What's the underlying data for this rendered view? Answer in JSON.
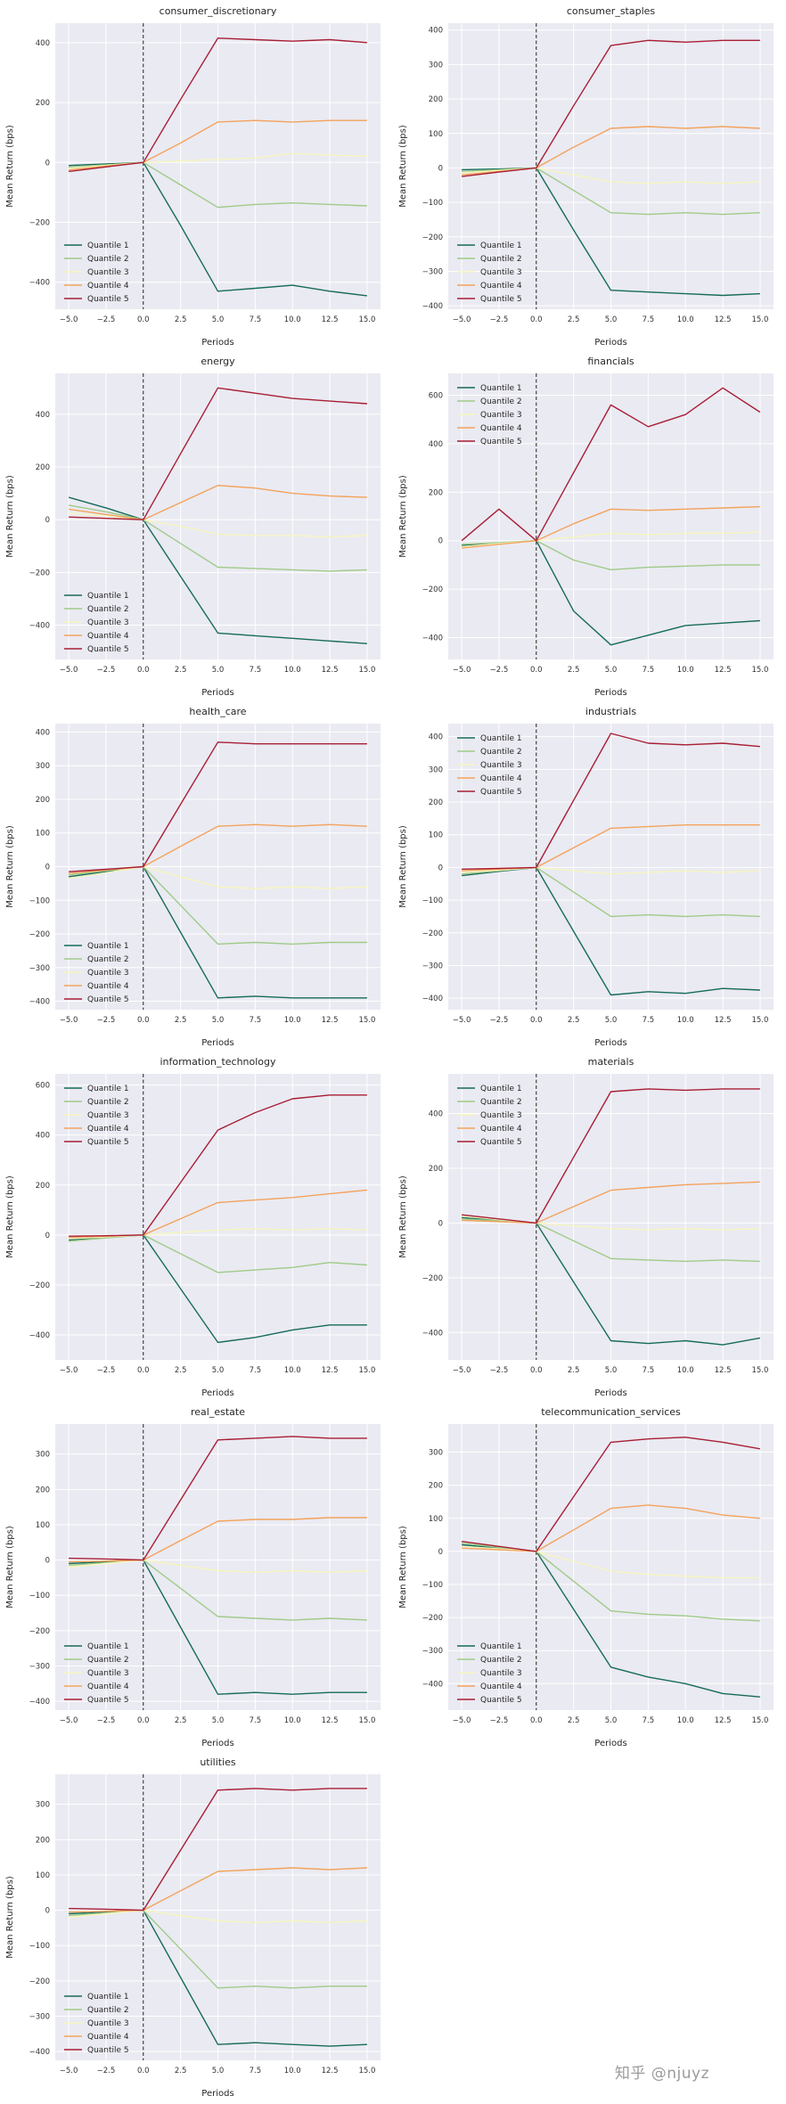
{
  "watermark": {
    "text": "知乎 @njuyz",
    "color": "#9b9b9b"
  },
  "figure": {
    "background": "#ffffff",
    "plot_bg": "#eaeaf2",
    "grid_color": "#ffffff",
    "vline_color": "#1c1c1c",
    "text_color": "#262626",
    "quantile_colors": [
      "#166b5a",
      "#9fcb88",
      "#f7f5be",
      "#f3a35c",
      "#a81e35"
    ]
  },
  "x_label": "Periods",
  "y_label": "Mean Return (bps)",
  "x": [
    -5,
    -2.5,
    0,
    2.5,
    5,
    7.5,
    10,
    12.5,
    15
  ],
  "x_tick_labels": [
    "−5.0",
    "−2.5",
    "0.0",
    "2.5",
    "5.0",
    "7.5",
    "10.0",
    "12.5",
    "15.0"
  ],
  "chart_data": [
    {
      "type": "line",
      "title": "consumer_discretionary",
      "ylim": [
        -490,
        465
      ],
      "yticks": [
        -400,
        -200,
        0,
        200,
        400
      ],
      "legend_loc": "lower-left",
      "series": [
        {
          "name": "Quantile 1",
          "values": [
            -10,
            -5,
            0,
            -210,
            -430,
            -420,
            -410,
            -430,
            -445
          ]
        },
        {
          "name": "Quantile 2",
          "values": [
            -15,
            -8,
            0,
            -75,
            -150,
            -140,
            -135,
            -140,
            -145
          ]
        },
        {
          "name": "Quantile 3",
          "values": [
            -20,
            -10,
            0,
            5,
            10,
            15,
            30,
            25,
            20
          ]
        },
        {
          "name": "Quantile 4",
          "values": [
            -25,
            -12,
            0,
            65,
            135,
            140,
            135,
            140,
            140
          ]
        },
        {
          "name": "Quantile 5",
          "values": [
            -30,
            -15,
            0,
            210,
            415,
            410,
            405,
            410,
            400
          ]
        }
      ]
    },
    {
      "type": "line",
      "title": "consumer_staples",
      "ylim": [
        -410,
        420
      ],
      "yticks": [
        -400,
        -300,
        -200,
        -100,
        0,
        100,
        200,
        300,
        400
      ],
      "legend_loc": "lower-left",
      "series": [
        {
          "name": "Quantile 1",
          "values": [
            -5,
            -3,
            0,
            -180,
            -355,
            -360,
            -365,
            -370,
            -365
          ]
        },
        {
          "name": "Quantile 2",
          "values": [
            -10,
            -5,
            0,
            -65,
            -130,
            -135,
            -130,
            -135,
            -130
          ]
        },
        {
          "name": "Quantile 3",
          "values": [
            -15,
            -8,
            0,
            -20,
            -40,
            -45,
            -40,
            -45,
            -40
          ]
        },
        {
          "name": "Quantile 4",
          "values": [
            -20,
            -10,
            0,
            60,
            115,
            120,
            115,
            120,
            115
          ]
        },
        {
          "name": "Quantile 5",
          "values": [
            -25,
            -12,
            0,
            180,
            355,
            370,
            365,
            370,
            370
          ]
        }
      ]
    },
    {
      "type": "line",
      "title": "energy",
      "ylim": [
        -530,
        555
      ],
      "yticks": [
        -400,
        -200,
        0,
        200,
        400
      ],
      "legend_loc": "lower-left",
      "series": [
        {
          "name": "Quantile 1",
          "values": [
            85,
            45,
            0,
            -215,
            -430,
            -440,
            -450,
            -460,
            -470
          ]
        },
        {
          "name": "Quantile 2",
          "values": [
            55,
            30,
            0,
            -90,
            -180,
            -185,
            -190,
            -195,
            -190
          ]
        },
        {
          "name": "Quantile 3",
          "values": [
            25,
            15,
            0,
            -25,
            -55,
            -60,
            -60,
            -65,
            -60
          ]
        },
        {
          "name": "Quantile 4",
          "values": [
            40,
            20,
            0,
            65,
            130,
            120,
            100,
            90,
            85
          ]
        },
        {
          "name": "Quantile 5",
          "values": [
            10,
            5,
            0,
            250,
            500,
            480,
            460,
            450,
            440
          ]
        }
      ]
    },
    {
      "type": "line",
      "title": "financials",
      "ylim": [
        -490,
        690
      ],
      "yticks": [
        -400,
        -200,
        0,
        200,
        400,
        600
      ],
      "legend_loc": "upper-left",
      "series": [
        {
          "name": "Quantile 1",
          "values": [
            -20,
            -10,
            0,
            -290,
            -430,
            -390,
            -350,
            -340,
            -330
          ]
        },
        {
          "name": "Quantile 2",
          "values": [
            -15,
            -8,
            0,
            -80,
            -120,
            -110,
            -105,
            -100,
            -100
          ]
        },
        {
          "name": "Quantile 3",
          "values": [
            -25,
            -12,
            0,
            15,
            30,
            25,
            30,
            30,
            35
          ]
        },
        {
          "name": "Quantile 4",
          "values": [
            -30,
            -15,
            0,
            70,
            130,
            125,
            130,
            135,
            140
          ]
        },
        {
          "name": "Quantile 5",
          "values": [
            0,
            130,
            0,
            280,
            560,
            470,
            520,
            630,
            530
          ]
        }
      ]
    },
    {
      "type": "line",
      "title": "health_care",
      "ylim": [
        -425,
        425
      ],
      "yticks": [
        -400,
        -300,
        -200,
        -100,
        0,
        100,
        200,
        300,
        400
      ],
      "legend_loc": "lower-left",
      "series": [
        {
          "name": "Quantile 1",
          "values": [
            -30,
            -15,
            0,
            -195,
            -390,
            -385,
            -390,
            -390,
            -390
          ]
        },
        {
          "name": "Quantile 2",
          "values": [
            -25,
            -12,
            0,
            -115,
            -230,
            -225,
            -230,
            -225,
            -225
          ]
        },
        {
          "name": "Quantile 3",
          "values": [
            -35,
            -18,
            0,
            -30,
            -60,
            -65,
            -60,
            -65,
            -60
          ]
        },
        {
          "name": "Quantile 4",
          "values": [
            -20,
            -10,
            0,
            60,
            120,
            125,
            120,
            125,
            120
          ]
        },
        {
          "name": "Quantile 5",
          "values": [
            -15,
            -8,
            0,
            185,
            370,
            365,
            365,
            365,
            365
          ]
        }
      ]
    },
    {
      "type": "line",
      "title": "industrials",
      "ylim": [
        -435,
        440
      ],
      "yticks": [
        -400,
        -300,
        -200,
        -100,
        0,
        100,
        200,
        300,
        400
      ],
      "legend_loc": "upper-left",
      "series": [
        {
          "name": "Quantile 1",
          "values": [
            -25,
            -12,
            0,
            -195,
            -390,
            -380,
            -385,
            -370,
            -375
          ]
        },
        {
          "name": "Quantile 2",
          "values": [
            -20,
            -10,
            0,
            -75,
            -150,
            -145,
            -150,
            -145,
            -150
          ]
        },
        {
          "name": "Quantile 3",
          "values": [
            -15,
            -8,
            0,
            -10,
            -20,
            -15,
            -10,
            -15,
            -10
          ]
        },
        {
          "name": "Quantile 4",
          "values": [
            -10,
            -5,
            0,
            60,
            120,
            125,
            130,
            130,
            130
          ]
        },
        {
          "name": "Quantile 5",
          "values": [
            -5,
            -3,
            0,
            205,
            410,
            380,
            375,
            380,
            370
          ]
        }
      ]
    },
    {
      "type": "line",
      "title": "information_technology",
      "ylim": [
        -500,
        645
      ],
      "yticks": [
        -400,
        -200,
        0,
        200,
        400,
        600
      ],
      "legend_loc": "upper-left",
      "series": [
        {
          "name": "Quantile 1",
          "values": [
            -20,
            -10,
            0,
            -215,
            -430,
            -410,
            -380,
            -360,
            -360
          ]
        },
        {
          "name": "Quantile 2",
          "values": [
            -25,
            -12,
            0,
            -75,
            -150,
            -140,
            -130,
            -110,
            -120
          ]
        },
        {
          "name": "Quantile 3",
          "values": [
            -15,
            -8,
            0,
            10,
            20,
            25,
            20,
            25,
            20
          ]
        },
        {
          "name": "Quantile 4",
          "values": [
            -10,
            -5,
            0,
            65,
            130,
            140,
            150,
            165,
            180
          ]
        },
        {
          "name": "Quantile 5",
          "values": [
            -5,
            -3,
            0,
            210,
            420,
            490,
            545,
            560,
            560
          ]
        }
      ]
    },
    {
      "type": "line",
      "title": "materials",
      "ylim": [
        -500,
        545
      ],
      "yticks": [
        -400,
        -200,
        0,
        200,
        400
      ],
      "legend_loc": "upper-left",
      "series": [
        {
          "name": "Quantile 1",
          "values": [
            20,
            10,
            0,
            -215,
            -430,
            -440,
            -430,
            -445,
            -420
          ]
        },
        {
          "name": "Quantile 2",
          "values": [
            15,
            8,
            0,
            -65,
            -130,
            -135,
            -140,
            -135,
            -140
          ]
        },
        {
          "name": "Quantile 3",
          "values": [
            25,
            12,
            0,
            -10,
            -20,
            -25,
            -20,
            -25,
            -20
          ]
        },
        {
          "name": "Quantile 4",
          "values": [
            10,
            5,
            0,
            60,
            120,
            130,
            140,
            145,
            150
          ]
        },
        {
          "name": "Quantile 5",
          "values": [
            30,
            15,
            0,
            240,
            480,
            490,
            485,
            490,
            490
          ]
        }
      ]
    },
    {
      "type": "line",
      "title": "real_estate",
      "ylim": [
        -425,
        385
      ],
      "yticks": [
        -400,
        -300,
        -200,
        -100,
        0,
        100,
        200,
        300
      ],
      "legend_loc": "lower-left",
      "series": [
        {
          "name": "Quantile 1",
          "values": [
            -10,
            -5,
            0,
            -190,
            -380,
            -375,
            -380,
            -375,
            -375
          ]
        },
        {
          "name": "Quantile 2",
          "values": [
            -15,
            -8,
            0,
            -80,
            -160,
            -165,
            -170,
            -165,
            -170
          ]
        },
        {
          "name": "Quantile 3",
          "values": [
            -20,
            -10,
            0,
            -15,
            -30,
            -35,
            -30,
            -35,
            -30
          ]
        },
        {
          "name": "Quantile 4",
          "values": [
            -5,
            -3,
            0,
            55,
            110,
            115,
            115,
            120,
            120
          ]
        },
        {
          "name": "Quantile 5",
          "values": [
            5,
            3,
            0,
            170,
            340,
            345,
            350,
            345,
            345
          ]
        }
      ]
    },
    {
      "type": "line",
      "title": "telecommunication_services",
      "ylim": [
        -480,
        385
      ],
      "yticks": [
        -400,
        -300,
        -200,
        -100,
        0,
        100,
        200,
        300
      ],
      "legend_loc": "lower-left",
      "series": [
        {
          "name": "Quantile 1",
          "values": [
            20,
            10,
            0,
            -175,
            -350,
            -380,
            -400,
            -430,
            -440
          ]
        },
        {
          "name": "Quantile 2",
          "values": [
            25,
            12,
            0,
            -90,
            -180,
            -190,
            -195,
            -205,
            -210
          ]
        },
        {
          "name": "Quantile 3",
          "values": [
            15,
            8,
            0,
            -30,
            -60,
            -70,
            -75,
            -80,
            -80
          ]
        },
        {
          "name": "Quantile 4",
          "values": [
            10,
            5,
            0,
            65,
            130,
            140,
            130,
            110,
            100
          ]
        },
        {
          "name": "Quantile 5",
          "values": [
            30,
            15,
            0,
            165,
            330,
            340,
            345,
            330,
            310
          ]
        }
      ]
    },
    {
      "type": "line",
      "title": "utilities",
      "ylim": [
        -425,
        385
      ],
      "yticks": [
        -400,
        -300,
        -200,
        -100,
        0,
        100,
        200,
        300
      ],
      "legend_loc": "lower-left",
      "series": [
        {
          "name": "Quantile 1",
          "values": [
            -10,
            -5,
            0,
            -190,
            -380,
            -375,
            -380,
            -385,
            -380
          ]
        },
        {
          "name": "Quantile 2",
          "values": [
            -15,
            -8,
            0,
            -110,
            -220,
            -215,
            -220,
            -215,
            -215
          ]
        },
        {
          "name": "Quantile 3",
          "values": [
            -20,
            -10,
            0,
            -15,
            -30,
            -35,
            -30,
            -35,
            -30
          ]
        },
        {
          "name": "Quantile 4",
          "values": [
            -5,
            -3,
            0,
            55,
            110,
            115,
            120,
            115,
            120
          ]
        },
        {
          "name": "Quantile 5",
          "values": [
            5,
            3,
            0,
            170,
            340,
            345,
            340,
            345,
            345
          ]
        }
      ]
    }
  ]
}
